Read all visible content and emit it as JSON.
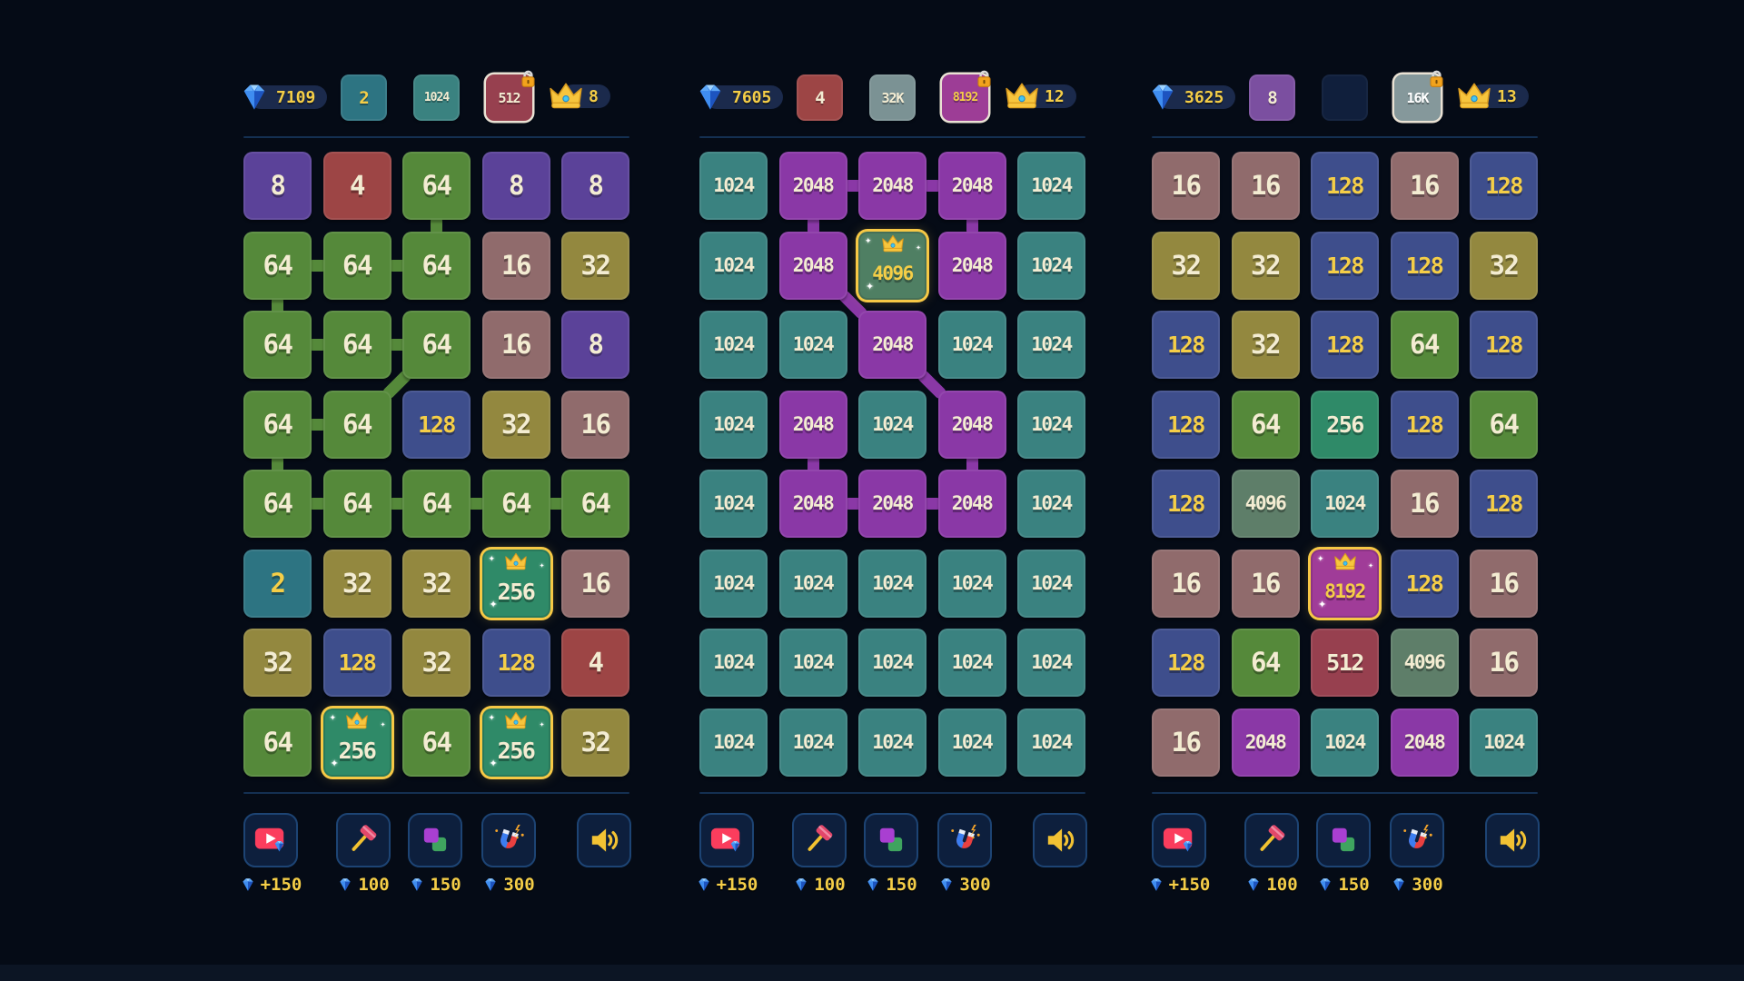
{
  "app": {
    "background": "#050b16",
    "pill_color": "#1b2a4c",
    "accent_yellow": "#f5ce47",
    "divider_color": "#143052",
    "crown_border_color": "#f6c845"
  },
  "tile_palette": {
    "2": {
      "bg": "#2d7482",
      "fg": "#f5ce47"
    },
    "4": {
      "bg": "#9d4545",
      "fg": "#f3ecd2"
    },
    "8": {
      "bg": "#5b4299",
      "fg": "#f3ecd2"
    },
    "8-slot": {
      "bg": "#7b4fa0",
      "fg": "#f3ecd2"
    },
    "16": {
      "bg": "#906b6c",
      "fg": "#f3ecd2"
    },
    "32": {
      "bg": "#93883f",
      "fg": "#f3ecd2"
    },
    "64": {
      "bg": "#55893a",
      "fg": "#f3ecd2"
    },
    "128": {
      "bg": "#3e4e8c",
      "fg": "#f5ce47"
    },
    "256": {
      "bg": "#2f8a68",
      "fg": "#f3ecd2"
    },
    "512": {
      "bg": "#97404f",
      "fg": "#f3ecd2"
    },
    "1024": {
      "bg": "#3a8280",
      "fg": "#f3ecd2"
    },
    "2048": {
      "bg": "#8a38a6",
      "fg": "#f3ecd2"
    },
    "4096": {
      "bg": "#5e7e69",
      "fg": "#f3ecd2"
    },
    "8192": {
      "bg": "#9d3d96",
      "fg": "#f5ce47"
    },
    "16K": {
      "bg": "#85989b",
      "fg": "#ffffff"
    },
    "32K": {
      "bg": "#7b9294",
      "fg": "#f3ecd2"
    }
  },
  "crowned_overrides": {
    "256": {
      "bg": "#2f8a68",
      "fg": "#f3ecd2"
    },
    "4096": {
      "bg": "#4f7f63",
      "fg": "#f5ce47"
    },
    "8192": {
      "bg": "#a03c98",
      "fg": "#f5ce47"
    }
  },
  "toolbar": {
    "buttons": [
      {
        "name": "video-reward-button",
        "icon": "video-play-icon",
        "cost": "+150"
      },
      {
        "name": "hammer-button",
        "icon": "hammer-icon",
        "cost": "100"
      },
      {
        "name": "swap-button",
        "icon": "swap-icon",
        "cost": "150"
      },
      {
        "name": "magnet-button",
        "icon": "magnet-icon",
        "cost": "300"
      },
      {
        "name": "sound-button",
        "icon": "speaker-icon",
        "cost": null
      }
    ]
  },
  "panels": [
    {
      "name": "board-1",
      "gems": "7109",
      "crowns": "8",
      "slots": [
        {
          "value": "2"
        },
        {
          "value": "1024"
        },
        {
          "value": "512",
          "locked": true
        }
      ],
      "grid": {
        "rows": 8,
        "cols": 5,
        "tiles": [
          [
            "8",
            "4",
            "64",
            "8",
            "8"
          ],
          [
            "64",
            "64",
            "64",
            "16",
            "32"
          ],
          [
            "64",
            "64",
            "64",
            "16",
            "8"
          ],
          [
            "64",
            "64",
            "128",
            "32",
            "16"
          ],
          [
            "64",
            "64",
            "64",
            "64",
            "64"
          ],
          [
            "2",
            "32",
            "32",
            "256",
            "16"
          ],
          [
            "32",
            "128",
            "32",
            "128",
            "4"
          ],
          [
            "64",
            "256",
            "64",
            "256",
            "32"
          ]
        ],
        "crowned": [
          [
            6,
            4
          ],
          [
            8,
            2
          ],
          [
            8,
            4
          ]
        ],
        "connectors": [
          {
            "row": 1,
            "col": 3,
            "dir": "v"
          },
          {
            "row": 2,
            "col": 1,
            "dir": "h"
          },
          {
            "row": 2,
            "col": 2,
            "dir": "h"
          },
          {
            "row": 2,
            "col": 1,
            "dir": "v"
          },
          {
            "row": 3,
            "col": 1,
            "dir": "h"
          },
          {
            "row": 3,
            "col": 2,
            "dir": "h"
          },
          {
            "row": 3,
            "col": 3,
            "dir": "dl"
          },
          {
            "row": 4,
            "col": 1,
            "dir": "h"
          },
          {
            "row": 4,
            "col": 1,
            "dir": "v"
          },
          {
            "row": 5,
            "col": 1,
            "dir": "h"
          },
          {
            "row": 5,
            "col": 2,
            "dir": "h"
          },
          {
            "row": 5,
            "col": 3,
            "dir": "h"
          },
          {
            "row": 5,
            "col": 4,
            "dir": "h"
          }
        ]
      }
    },
    {
      "name": "board-2",
      "gems": "7605",
      "crowns": "12",
      "slots": [
        {
          "value": "4"
        },
        {
          "value": "32K"
        },
        {
          "value": "8192",
          "locked": true
        }
      ],
      "grid": {
        "rows": 8,
        "cols": 5,
        "tiles": [
          [
            "1024",
            "2048",
            "2048",
            "2048",
            "1024"
          ],
          [
            "1024",
            "2048",
            "4096",
            "2048",
            "1024"
          ],
          [
            "1024",
            "1024",
            "2048",
            "1024",
            "1024"
          ],
          [
            "1024",
            "2048",
            "1024",
            "2048",
            "1024"
          ],
          [
            "1024",
            "2048",
            "2048",
            "2048",
            "1024"
          ],
          [
            "1024",
            "1024",
            "1024",
            "1024",
            "1024"
          ],
          [
            "1024",
            "1024",
            "1024",
            "1024",
            "1024"
          ],
          [
            "1024",
            "1024",
            "1024",
            "1024",
            "1024"
          ]
        ],
        "crowned": [
          [
            2,
            3
          ]
        ],
        "connectors": [
          {
            "row": 1,
            "col": 2,
            "dir": "h"
          },
          {
            "row": 1,
            "col": 3,
            "dir": "h"
          },
          {
            "row": 1,
            "col": 2,
            "dir": "v"
          },
          {
            "row": 1,
            "col": 4,
            "dir": "v"
          },
          {
            "row": 2,
            "col": 2,
            "dir": "dr"
          },
          {
            "row": 3,
            "col": 3,
            "dir": "dr"
          },
          {
            "row": 4,
            "col": 2,
            "dir": "v"
          },
          {
            "row": 4,
            "col": 4,
            "dir": "v"
          },
          {
            "row": 5,
            "col": 2,
            "dir": "h"
          },
          {
            "row": 5,
            "col": 3,
            "dir": "h"
          }
        ]
      }
    },
    {
      "name": "board-3",
      "gems": "3625",
      "crowns": "13",
      "slots": [
        {
          "value": "8"
        },
        {
          "empty": true
        },
        {
          "value": "16K",
          "locked": true
        }
      ],
      "grid": {
        "rows": 8,
        "cols": 5,
        "tiles": [
          [
            "16",
            "16",
            "128",
            "16",
            "128"
          ],
          [
            "32",
            "32",
            "128",
            "128",
            "32"
          ],
          [
            "128",
            "32",
            "128",
            "64",
            "128"
          ],
          [
            "128",
            "64",
            "256",
            "128",
            "64"
          ],
          [
            "128",
            "4096",
            "1024",
            "16",
            "128"
          ],
          [
            "16",
            "16",
            "8192",
            "128",
            "16"
          ],
          [
            "128",
            "64",
            "512",
            "4096",
            "16"
          ],
          [
            "16",
            "2048",
            "1024",
            "2048",
            "1024"
          ]
        ],
        "crowned": [
          [
            6,
            3
          ]
        ],
        "connectors": []
      }
    }
  ]
}
